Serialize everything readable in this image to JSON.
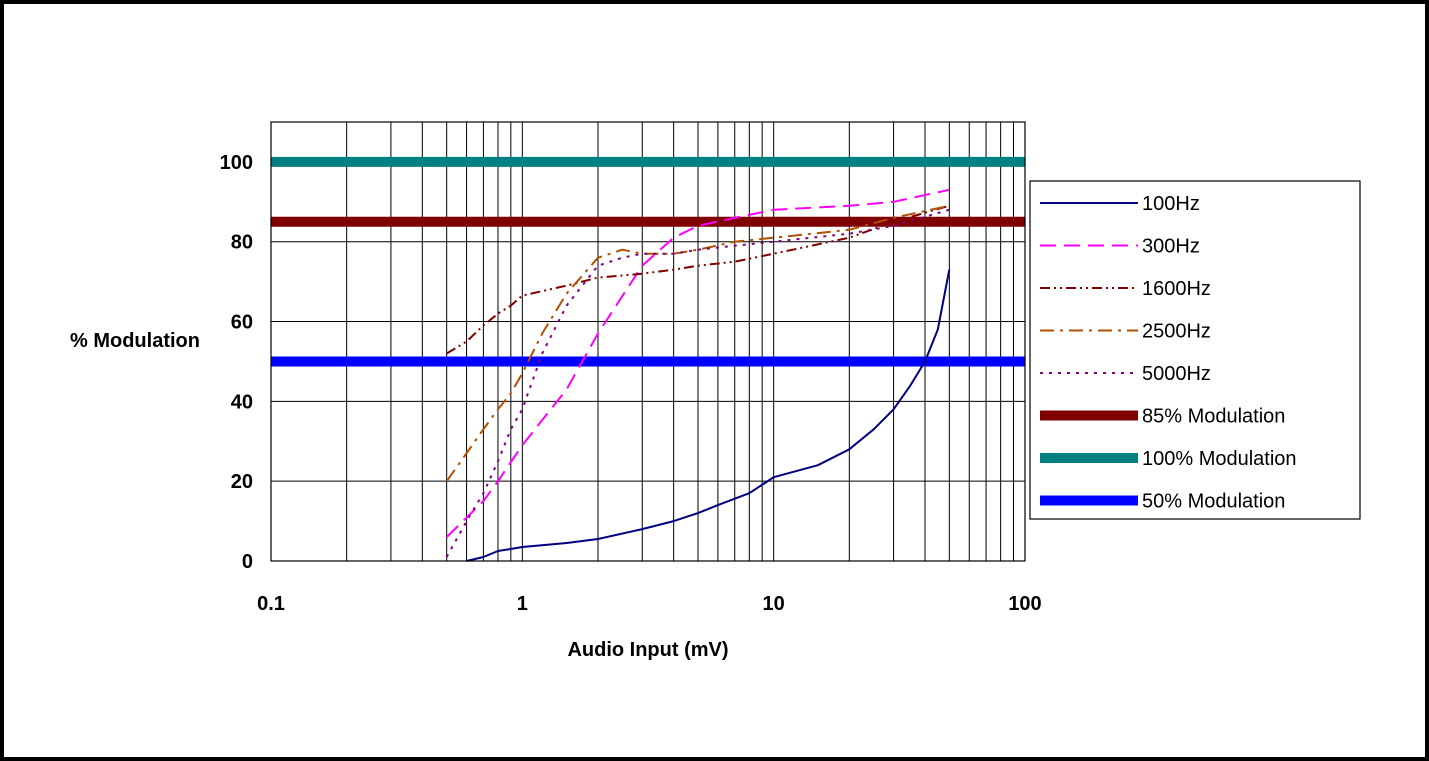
{
  "chart_data": {
    "type": "line",
    "x_scale": "log",
    "xlabel": "Audio Input (mV)",
    "ylabel": "% Modulation",
    "xlim": [
      0.1,
      100
    ],
    "ylim": [
      0,
      110
    ],
    "x_ticks": [
      "0.1",
      "1",
      "10",
      "100"
    ],
    "y_ticks": [
      "0",
      "20",
      "40",
      "60",
      "80",
      "100"
    ],
    "grid": true,
    "legend_position": "right",
    "series": [
      {
        "name": "100Hz",
        "color": "#000080",
        "dash": "solid",
        "width": 2,
        "x": [
          0.6,
          0.7,
          0.8,
          0.9,
          1,
          1.5,
          2,
          3,
          4,
          5,
          6,
          8,
          10,
          15,
          20,
          25,
          30,
          35,
          40,
          45,
          50
        ],
        "y": [
          0,
          1,
          2.5,
          3,
          3.5,
          4.5,
          5.5,
          8,
          10,
          12,
          14,
          17,
          21,
          24,
          28,
          33,
          38,
          44,
          50,
          58,
          73
        ]
      },
      {
        "name": "300Hz",
        "color": "#ff00ff",
        "dash": "16,8",
        "width": 2,
        "x": [
          0.5,
          0.7,
          0.8,
          1,
          1.5,
          2,
          3,
          4,
          5,
          7,
          10,
          20,
          30,
          50
        ],
        "y": [
          6,
          15,
          20,
          29,
          43,
          57,
          74,
          81,
          84,
          86,
          88,
          89,
          90,
          93
        ]
      },
      {
        "name": "1600Hz",
        "color": "#800000",
        "dash": "10,4,2,4,2,4",
        "width": 2,
        "x": [
          0.5,
          0.6,
          0.7,
          0.8,
          0.9,
          1,
          1.5,
          2,
          3,
          4,
          5,
          7,
          10,
          20,
          30,
          50
        ],
        "y": [
          52,
          55,
          59,
          62,
          64,
          66.5,
          69,
          71,
          72,
          73,
          74,
          75,
          77,
          81,
          85,
          89
        ]
      },
      {
        "name": "2500Hz",
        "color": "#b05000",
        "dash": "14,6,3,6",
        "width": 2,
        "x": [
          0.5,
          0.6,
          0.7,
          0.8,
          0.9,
          1,
          1.2,
          1.5,
          2,
          2.5,
          3,
          4,
          5,
          7,
          10,
          20,
          30,
          50
        ],
        "y": [
          20,
          27,
          33,
          38,
          42,
          47,
          57,
          67,
          76,
          78,
          77,
          77,
          78,
          80,
          81,
          83,
          86,
          89
        ]
      },
      {
        "name": "5000Hz",
        "color": "#800080",
        "dash": "3,6",
        "width": 2,
        "x": [
          0.5,
          0.6,
          0.7,
          0.8,
          0.9,
          1,
          1.2,
          1.5,
          2,
          2.5,
          3,
          4,
          5,
          7,
          10,
          20,
          30,
          50
        ],
        "y": [
          1,
          10,
          17,
          25,
          33,
          38,
          52,
          64,
          74,
          76,
          77,
          77,
          78,
          79,
          80,
          82,
          84,
          88
        ]
      },
      {
        "name": "85% Modulation",
        "color": "#800000",
        "dash": "solid",
        "width": 10,
        "x": [
          0.1,
          100
        ],
        "y": [
          85,
          85
        ]
      },
      {
        "name": "100% Modulation",
        "color": "#008080",
        "dash": "solid",
        "width": 10,
        "x": [
          0.1,
          100
        ],
        "y": [
          100,
          100
        ]
      },
      {
        "name": "50% Modulation",
        "color": "#0000ff",
        "dash": "solid",
        "width": 10,
        "x": [
          0.1,
          100
        ],
        "y": [
          50,
          50
        ]
      }
    ]
  }
}
